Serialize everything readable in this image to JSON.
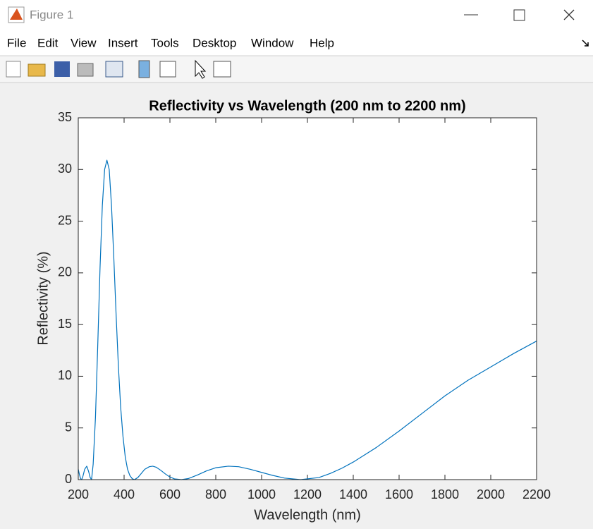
{
  "window": {
    "title": "Figure 1",
    "menu": [
      "File",
      "Edit",
      "View",
      "Insert",
      "Tools",
      "Desktop",
      "Window",
      "Help"
    ]
  },
  "chart_data": {
    "type": "line",
    "title": "Reflectivity vs Wavelength (200 nm to 2200 nm)",
    "x_label": "Wavelength (nm)",
    "y_label": "Reflectivity (%)",
    "x": [
      200,
      205,
      210,
      215,
      220,
      228,
      237,
      245,
      252,
      258,
      265,
      275,
      285,
      295,
      305,
      315,
      325,
      335,
      345,
      355,
      365,
      375,
      385,
      395,
      405,
      415,
      425,
      435,
      445,
      460,
      475,
      490,
      510,
      525,
      540,
      560,
      580,
      600,
      620,
      650,
      680,
      720,
      760,
      800,
      855,
      900,
      950,
      1000,
      1050,
      1100,
      1170,
      1250,
      1300,
      1350,
      1400,
      1500,
      1600,
      1700,
      1800,
      1900,
      2000,
      2100,
      2200
    ],
    "series": [
      {
        "name": "Reflectivity",
        "color": "#0072bd",
        "values": [
          1.0,
          0.5,
          0.1,
          0.0,
          0.3,
          1.0,
          1.3,
          0.8,
          0.2,
          0.0,
          1.5,
          6,
          13,
          20.5,
          26.5,
          30,
          30.9,
          30,
          26.5,
          21.5,
          16,
          11,
          7,
          4.2,
          2.2,
          1.0,
          0.4,
          0.1,
          0.0,
          0.2,
          0.6,
          1.0,
          1.25,
          1.3,
          1.2,
          0.9,
          0.55,
          0.25,
          0.07,
          0.0,
          0.1,
          0.45,
          0.85,
          1.15,
          1.3,
          1.25,
          1.0,
          0.7,
          0.4,
          0.15,
          0.0,
          0.2,
          0.6,
          1.1,
          1.7,
          3.1,
          4.7,
          6.4,
          8.1,
          9.6,
          10.9,
          12.2,
          13.4
        ]
      }
    ],
    "xlim": [
      200,
      2200
    ],
    "xticks": [
      200,
      400,
      600,
      800,
      1000,
      1200,
      1400,
      1600,
      1800,
      2000,
      2200
    ],
    "ylim": [
      0,
      35
    ],
    "yticks": [
      0,
      5,
      10,
      15,
      20,
      25,
      30,
      35
    ]
  }
}
